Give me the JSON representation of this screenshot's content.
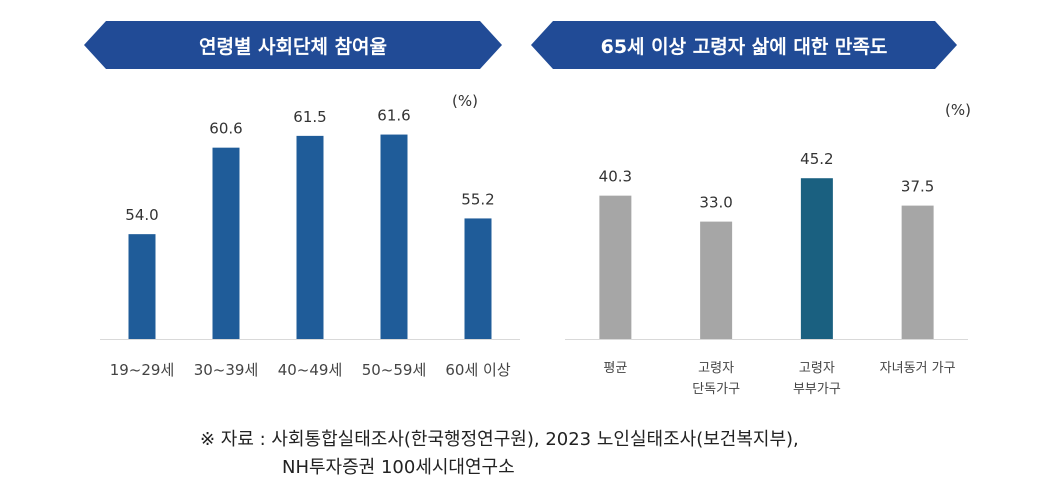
{
  "colors": {
    "banner": "#214b96",
    "bar_blue": "#1f5c99",
    "bar_gray": "#a6a6a6",
    "bar_highlight": "#1a6080",
    "axis": "#d9d9d9"
  },
  "chart_data": [
    {
      "type": "bar",
      "title": "연령별 사회단체 참여율",
      "unit": "(%)",
      "categories": [
        "19~29세",
        "30~39세",
        "40~49세",
        "50~59세",
        "60세 이상"
      ],
      "values": [
        54.0,
        60.6,
        61.5,
        61.6,
        55.2
      ],
      "labels": [
        "54.0",
        "60.6",
        "61.5",
        "61.6",
        "55.2"
      ],
      "ylim": [
        46,
        65
      ],
      "grid": false
    },
    {
      "type": "bar",
      "title": "65세 이상 고령자 삶에 대한 만족도",
      "unit": "(%)",
      "categories": [
        [
          "평균"
        ],
        [
          "고령자",
          "단독가구"
        ],
        [
          "고령자",
          "부부가구"
        ],
        [
          "자녀동거 가구"
        ]
      ],
      "values": [
        40.3,
        33.0,
        45.2,
        37.5
      ],
      "labels": [
        "40.3",
        "33.0",
        "45.2",
        "37.5"
      ],
      "highlight_index": 2,
      "ylim": [
        0,
        70
      ],
      "grid": false
    }
  ],
  "footnote": {
    "line1": "※ 자료 : 사회통합실태조사(한국행정연구원), 2023 노인실태조사(보건복지부),",
    "line2": "NH투자증권 100세시대연구소"
  }
}
